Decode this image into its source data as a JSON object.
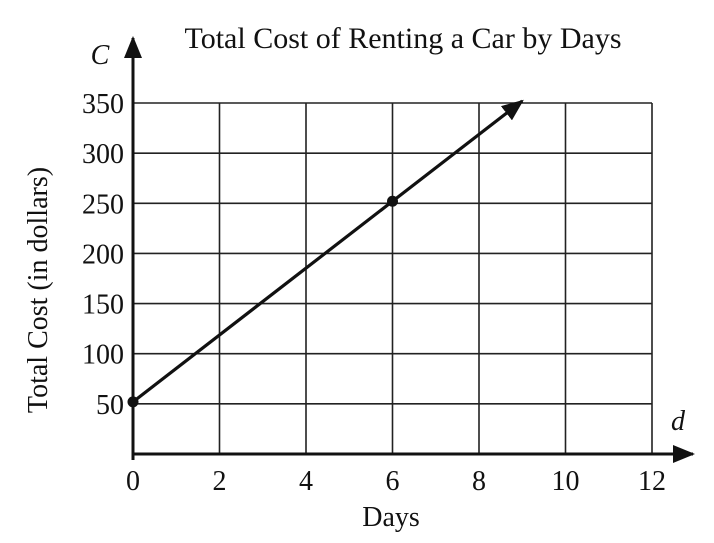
{
  "chart_data": {
    "type": "line",
    "title": "Total Cost of Renting a Car by Days",
    "xlabel": "Days",
    "ylabel": "Total Cost (in dollars)",
    "x_axis_var": "d",
    "y_axis_var": "C",
    "xlim": [
      0,
      12
    ],
    "ylim": [
      0,
      350
    ],
    "x_ticks": [
      0,
      2,
      4,
      6,
      8,
      10,
      12
    ],
    "x_tick_labels": [
      "0",
      "2",
      "4",
      "6",
      "8",
      "10",
      "12"
    ],
    "y_ticks": [
      50,
      100,
      150,
      200,
      250,
      300,
      350
    ],
    "y_tick_labels": [
      "50",
      "100",
      "150",
      "200",
      "250",
      "300",
      "350"
    ],
    "grid": true,
    "legend": "none",
    "series": [
      {
        "x": [
          0,
          6,
          9
        ],
        "y": [
          52,
          252,
          352
        ],
        "points": [
          [
            0,
            52
          ],
          [
            6,
            252
          ]
        ],
        "color": "#111111",
        "end_arrow": true
      }
    ]
  }
}
